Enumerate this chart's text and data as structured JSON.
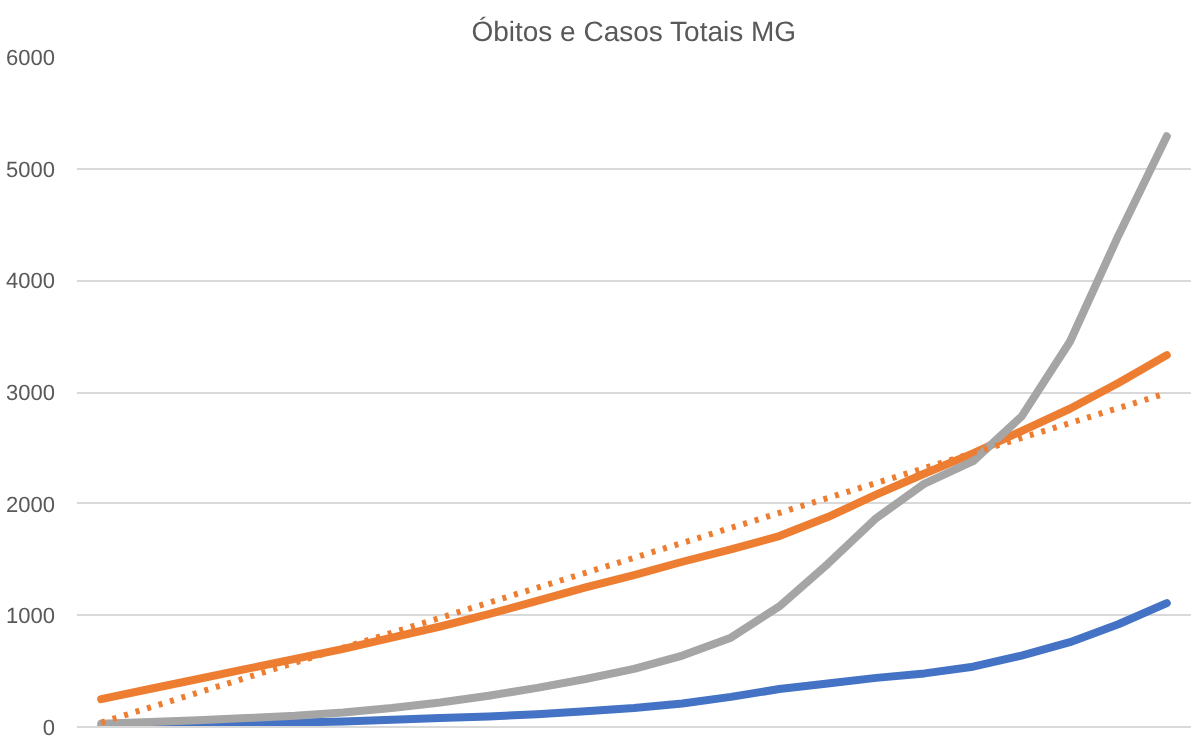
{
  "chart_data": {
    "type": "line",
    "title": "Óbitos e Casos Totais MG",
    "categories": [
      null,
      null,
      null,
      null,
      null,
      null,
      null,
      null,
      null,
      null,
      null,
      null,
      null,
      null,
      null,
      null,
      null,
      null,
      null,
      null,
      null,
      null,
      null
    ],
    "series": [
      {
        "color": "#4472c4",
        "values": [
          0,
          10,
          20,
          30,
          40,
          50,
          65,
          80,
          95,
          115,
          140,
          170,
          210,
          270,
          340,
          390,
          440,
          480,
          540,
          640,
          760,
          920,
          1110
        ]
      },
      {
        "color": "#ed7d31",
        "values": [
          250,
          340,
          430,
          520,
          610,
          700,
          800,
          900,
          1010,
          1130,
          1250,
          1360,
          1480,
          1590,
          1710,
          1880,
          2080,
          2270,
          2450,
          2650,
          2850,
          3080,
          3330
        ]
      },
      {
        "color": "#a5a5a5",
        "values": [
          30,
          45,
          60,
          80,
          100,
          130,
          170,
          220,
          280,
          350,
          430,
          520,
          640,
          800,
          1080,
          1460,
          1870,
          2180,
          2380,
          2780,
          3450,
          4400,
          5290
        ]
      },
      {
        "color": "#ed7d31",
        "line_style": "dotted",
        "values": [
          40,
          174,
          308,
          442,
          576,
          710,
          844,
          978,
          1113,
          1247,
          1381,
          1515,
          1649,
          1783,
          1917,
          2051,
          2185,
          2319,
          2454,
          2588,
          2722,
          2856,
          2990
        ]
      }
    ],
    "ylim": [
      0,
      6000
    ],
    "yticks": [
      0,
      1000,
      2000,
      3000,
      4000,
      5000,
      6000
    ],
    "grid": "y",
    "tick_labels": "y",
    "line_style": "solid"
  }
}
